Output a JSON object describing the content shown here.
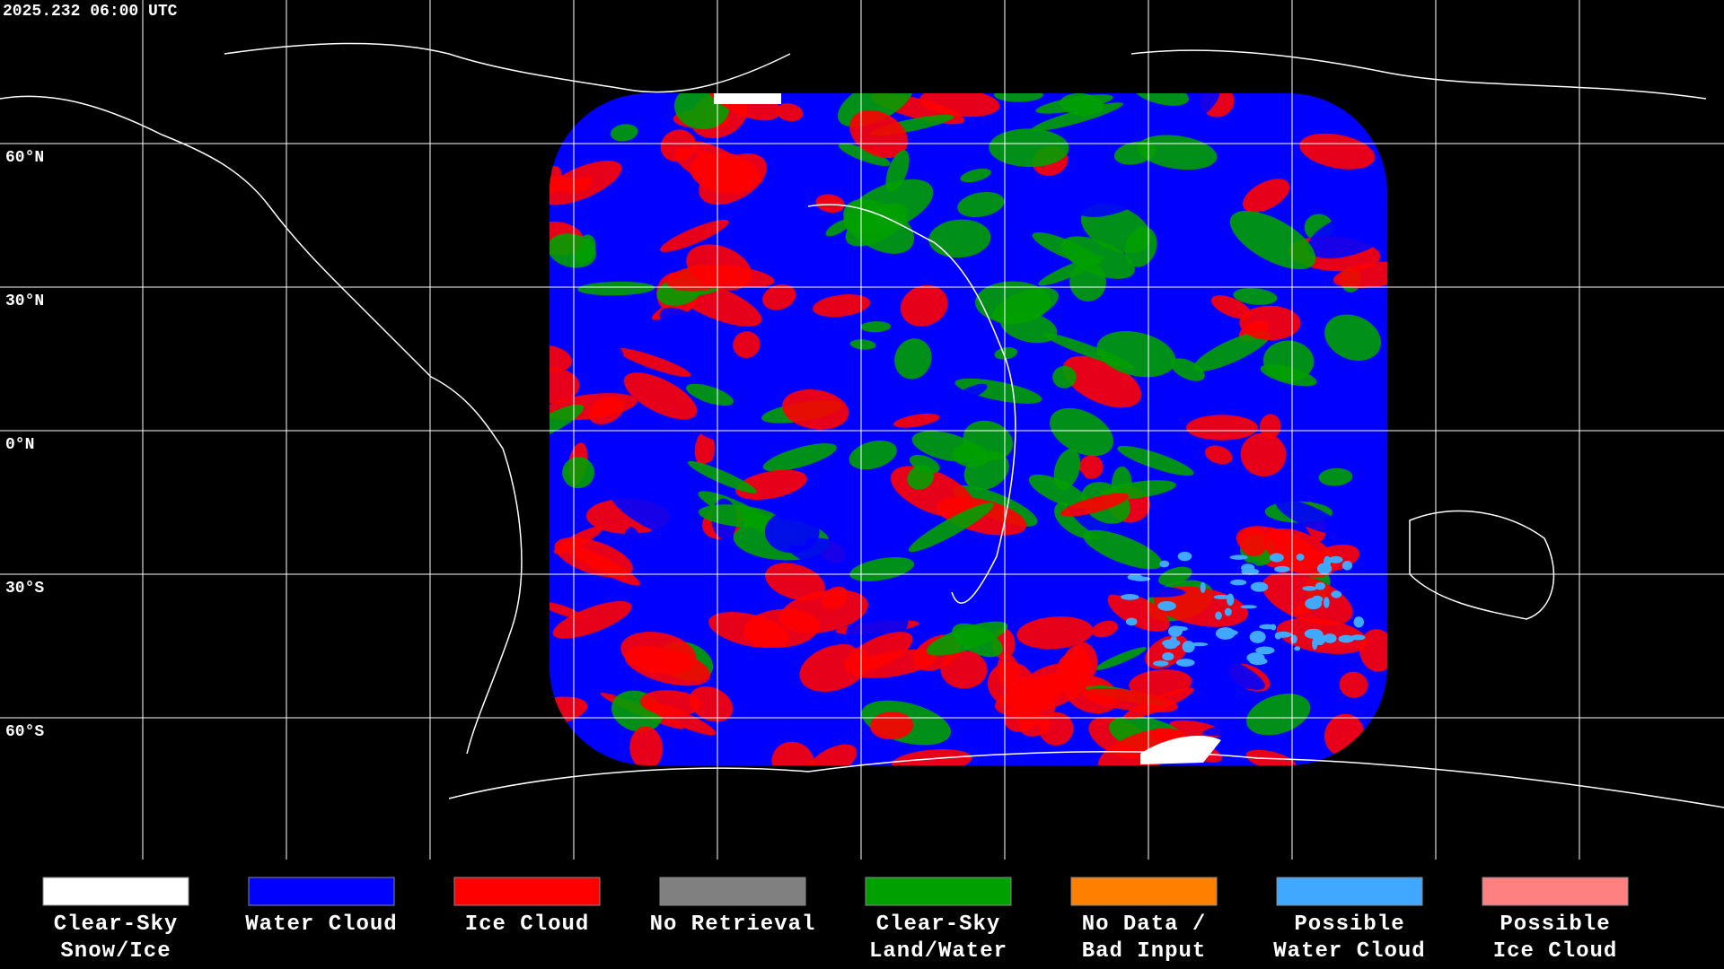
{
  "header": {
    "timestamp": "2025.232 06:00 UTC"
  },
  "map": {
    "latitude_labels": [
      "60°N",
      "30°N",
      "0°N",
      "30°S",
      "60°S"
    ]
  },
  "legend": [
    {
      "color": "#ffffff",
      "label": [
        "Clear-Sky",
        "Snow/Ice"
      ]
    },
    {
      "color": "#0000ff",
      "label": [
        "Water Cloud"
      ]
    },
    {
      "color": "#ff0000",
      "label": [
        "Ice Cloud"
      ]
    },
    {
      "color": "#808080",
      "label": [
        "No Retrieval"
      ]
    },
    {
      "color": "#00a000",
      "label": [
        "Clear-Sky",
        "Land/Water"
      ]
    },
    {
      "color": "#ff8000",
      "label": [
        "No Data /",
        "Bad Input"
      ]
    },
    {
      "color": "#40a8ff",
      "label": [
        "Possible",
        "Water Cloud"
      ]
    },
    {
      "color": "#ff8080",
      "label": [
        "Possible",
        "Ice Cloud"
      ]
    }
  ]
}
